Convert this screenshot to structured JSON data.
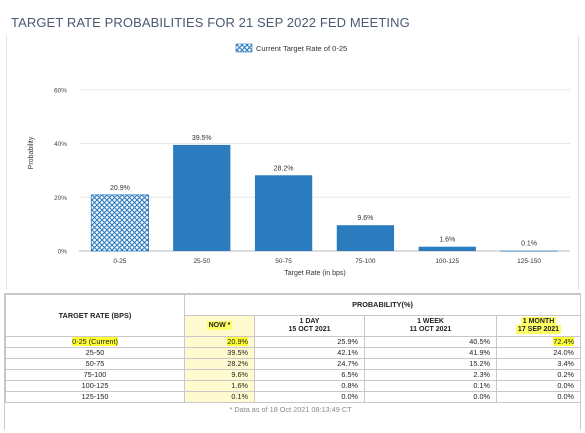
{
  "page": {
    "title": "TARGET RATE PROBABILITIES FOR 21 SEP 2022 FED MEETING"
  },
  "chart_data": {
    "type": "bar",
    "title": "TARGET RATE PROBABILITIES FOR 21 SEP 2022 FED MEETING",
    "xlabel": "Target Rate (in bps)",
    "ylabel": "Probability",
    "categories": [
      "0-25",
      "25-50",
      "50-75",
      "75-100",
      "100-125",
      "125-150"
    ],
    "values": [
      20.9,
      39.5,
      28.2,
      9.6,
      1.6,
      0.1
    ],
    "value_labels": [
      "20.9%",
      "39.5%",
      "28.2%",
      "9.6%",
      "1.6%",
      "0.1%"
    ],
    "yticks": [
      "0%",
      "20%",
      "40%",
      "60%"
    ],
    "ylim": [
      0,
      70
    ],
    "legend": {
      "label": "Current Target Rate of 0-25",
      "position": "top-center"
    },
    "highlight_category": "0-25",
    "colors": {
      "bar": "#2b7bbf",
      "current_pattern": "#2b7bbf",
      "grid": "#e6e6e6"
    }
  },
  "table": {
    "header_left": "TARGET RATE (BPS)",
    "header_group": "PROBABILITY(%)",
    "columns": [
      {
        "line1": "NOW *",
        "line2": ""
      },
      {
        "line1": "1 DAY",
        "line2": "15 OCT 2021"
      },
      {
        "line1": "1 WEEK",
        "line2": "11 OCT 2021"
      },
      {
        "line1": "1 MONTH",
        "line2": "17 SEP 2021"
      }
    ],
    "rows": [
      {
        "rate": "0-25 (Current)",
        "now": "20.9%",
        "day": "25.9%",
        "week": "40.5%",
        "month": "72.4%"
      },
      {
        "rate": "25-50",
        "now": "39.5%",
        "day": "42.1%",
        "week": "41.9%",
        "month": "24.0%"
      },
      {
        "rate": "50-75",
        "now": "28.2%",
        "day": "24.7%",
        "week": "15.2%",
        "month": "3.4%"
      },
      {
        "rate": "75-100",
        "now": "9.6%",
        "day": "6.5%",
        "week": "2.3%",
        "month": "0.2%"
      },
      {
        "rate": "100-125",
        "now": "1.6%",
        "day": "0.8%",
        "week": "0.1%",
        "month": "0.0%"
      },
      {
        "rate": "125-150",
        "now": "0.1%",
        "day": "0.0%",
        "week": "0.0%",
        "month": "0.0%"
      }
    ],
    "footnote": "* Data as of 18 Oct 2021 08:13:49 CT"
  }
}
